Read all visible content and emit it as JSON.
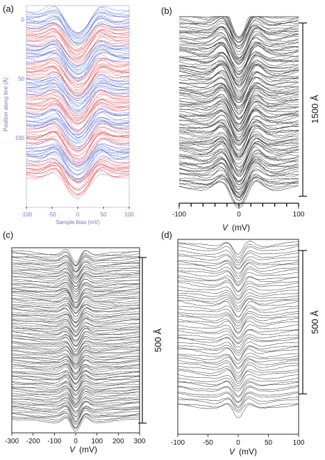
{
  "chart_data": [
    {
      "panel": "(a)",
      "type": "line",
      "xlabel": "Sample bias (mV)",
      "ylabel": "Position along line (Å)",
      "xlim": [
        -100,
        100
      ],
      "xticks": [
        "-100",
        "-50",
        "0",
        "50",
        "100"
      ],
      "yticks": [
        "0",
        "50",
        "100"
      ],
      "colors": [
        "#e0303a",
        "#3a4fd0"
      ],
      "waterfall": {
        "n_curves": 140,
        "peaks_mV": [
          -42,
          42
        ],
        "gap_minimum_mV": 0
      }
    },
    {
      "panel": "(b)",
      "type": "line",
      "xlabel": "V",
      "xunit": "(mV)",
      "xlim": [
        -100,
        100
      ],
      "xticks": [
        "-100",
        "0",
        "100"
      ],
      "scale_bar": "1500 Å",
      "colors": [
        "#222222"
      ],
      "waterfall": {
        "n_curves": 120,
        "peaks_mV": [
          -25,
          25
        ],
        "gap_minimum_mV": 0
      }
    },
    {
      "panel": "(c)",
      "type": "line",
      "xlabel": "V",
      "xunit": "(mV)",
      "xlim": [
        -300,
        300
      ],
      "xticks": [
        "-300",
        "-200",
        "-100",
        "0",
        "100",
        "200",
        "300"
      ],
      "scale_bar": "500 Å",
      "colors": [
        "#2e2e2e"
      ],
      "waterfall": {
        "n_curves": 110,
        "peaks_mV": [
          -40,
          40
        ],
        "gap_minimum_mV": 0
      }
    },
    {
      "panel": "(d)",
      "type": "line",
      "xlabel": "V",
      "xunit": "(mV)",
      "xlim": [
        -100,
        100
      ],
      "xticks": [
        "-100",
        "-50",
        "0",
        "50",
        "100"
      ],
      "scale_bar": "500 Å",
      "colors": [
        "#1e1e1e"
      ],
      "waterfall": {
        "n_curves": 60,
        "peaks_mV": [
          -15,
          15
        ],
        "gap_minimum_mV": 0
      }
    }
  ]
}
